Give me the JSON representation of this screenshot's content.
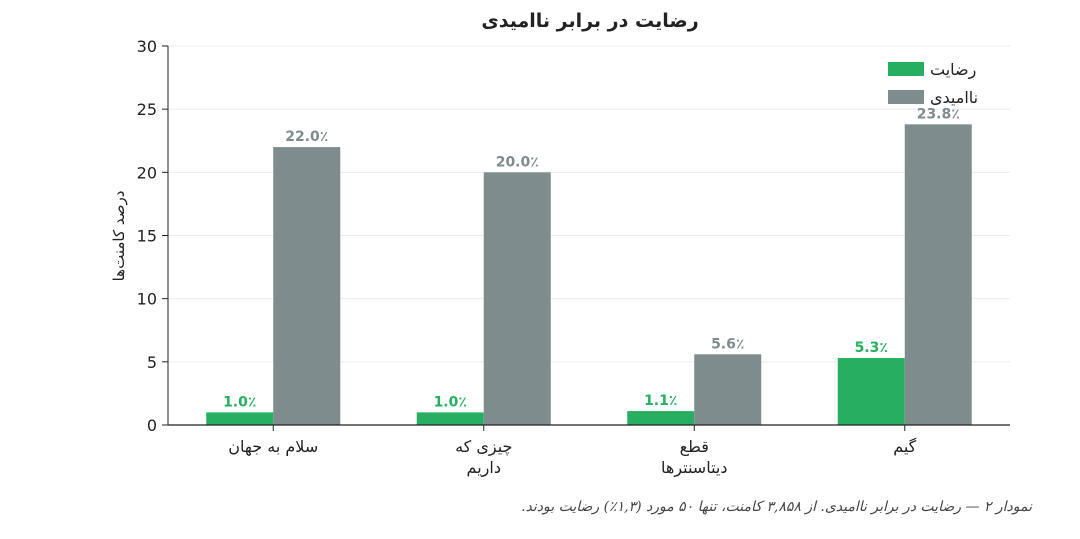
{
  "chart_data": {
    "type": "bar",
    "title": "رضایت در برابر ناامیدی",
    "ylabel": "درصد کامنت‌ها",
    "ylim": [
      0,
      30
    ],
    "yticks": [
      0,
      5,
      10,
      15,
      20,
      25,
      30
    ],
    "grid": true,
    "legend_position": "top-right",
    "categories": [
      [
        "سلام به جهان"
      ],
      [
        "چیزی که",
        "داریم"
      ],
      [
        "قطع",
        "دیتاسنترها"
      ],
      [
        "گیم"
      ]
    ],
    "series": [
      {
        "name": "رضایت",
        "color": "#27ae60",
        "values": [
          1.0,
          1.0,
          1.1,
          5.3
        ],
        "labels": [
          "1.0٪",
          "1.0٪",
          "1.1٪",
          "5.3٪"
        ]
      },
      {
        "name": "ناامیدی",
        "color": "#7f8c8d",
        "values": [
          22.0,
          20.0,
          5.6,
          23.8
        ],
        "labels": [
          "22.0٪",
          "20.0٪",
          "5.6٪",
          "23.8٪"
        ]
      }
    ]
  },
  "caption": "نمودار ۲ — رضایت در برابر ناامیدی. از ۳,۸۵۸ کامنت، تنها ۵۰ مورد (۱,۳٪) رضایت بودند."
}
